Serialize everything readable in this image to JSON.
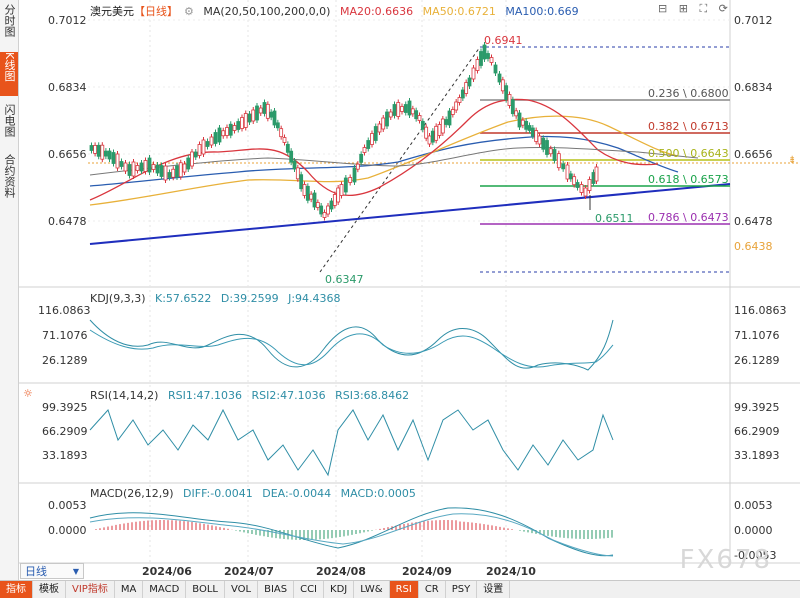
{
  "side_tabs": [
    {
      "label": "分时图",
      "active": false
    },
    {
      "label": "K线图",
      "active": true
    },
    {
      "label": "闪电图",
      "active": false
    },
    {
      "label": "合约资料",
      "active": false
    }
  ],
  "header": {
    "symbol": "澳元美元",
    "period": "【日线】",
    "ma_label": "MA(20,50,100,200,0,0)",
    "ma20": "MA20:0.6636",
    "ma50": "MA50:0.6721",
    "ma100": "MA100:0.669"
  },
  "price_axis": {
    "left": [
      "0.7012",
      "0.6834",
      "0.6656",
      "0.6478"
    ],
    "right": [
      "0.7012",
      "0.6834",
      "0.6656",
      "0.6478"
    ],
    "right_extra": "0.6438"
  },
  "annotations": {
    "high": "0.6941",
    "low": "0.6347",
    "recent_low": "0.6511"
  },
  "fib_levels": [
    {
      "label": "0.236 \\ 0.6800",
      "color": "#777777"
    },
    {
      "label": "0.382 \\ 0.6713",
      "color": "#c0392b"
    },
    {
      "label": "0.500 \\ 0.6643",
      "color": "#b5c21a"
    },
    {
      "label": "0.618 \\ 0.6573",
      "color": "#1aa34a"
    },
    {
      "label": "0.786 \\ 0.6473",
      "color": "#9b30b0"
    }
  ],
  "kdj": {
    "title": "KDJ(9,3,3)",
    "k": "K:57.6522",
    "d": "D:39.2599",
    "j": "J:94.4368",
    "ticks": [
      "116.0863",
      "71.1076",
      "26.1289"
    ]
  },
  "rsi": {
    "title": "RSI(14,14,2)",
    "rsi1": "RSI1:47.1036",
    "rsi2": "RSI2:47.1036",
    "rsi3": "RSI3:68.8462",
    "ticks": [
      "99.3925",
      "66.2909",
      "33.1893"
    ]
  },
  "macd": {
    "title": "MACD(26,12,9)",
    "diff": "DIFF:-0.0041",
    "dea": "DEA:-0.0044",
    "macd": "MACD:0.0005",
    "ticks": [
      "0.0053",
      "0.0000",
      "-0.0053"
    ]
  },
  "date_axis": [
    "2024/06",
    "2024/07",
    "2024/08",
    "2024/09",
    "2024/10"
  ],
  "period_select": "日线",
  "bottom_tabs": [
    {
      "label": "指标",
      "active": true
    },
    {
      "label": "模板"
    },
    {
      "label": "VIP指标",
      "vip": true
    },
    {
      "label": "MA"
    },
    {
      "label": "MACD"
    },
    {
      "label": "BOLL"
    },
    {
      "label": "VOL"
    },
    {
      "label": "BIAS"
    },
    {
      "label": "CCI"
    },
    {
      "label": "KDJ"
    },
    {
      "label": "LW&"
    },
    {
      "label": "RSI",
      "active": true
    },
    {
      "label": "CR"
    },
    {
      "label": "PSY"
    },
    {
      "label": "设置"
    }
  ],
  "watermark": "FX678",
  "colors": {
    "up": "#d9363e",
    "down": "#2b9a6a",
    "ma20": "#d9363e",
    "ma50": "#e8b13a",
    "ma100": "#2a5db0",
    "accent": "#e8541b"
  }
}
